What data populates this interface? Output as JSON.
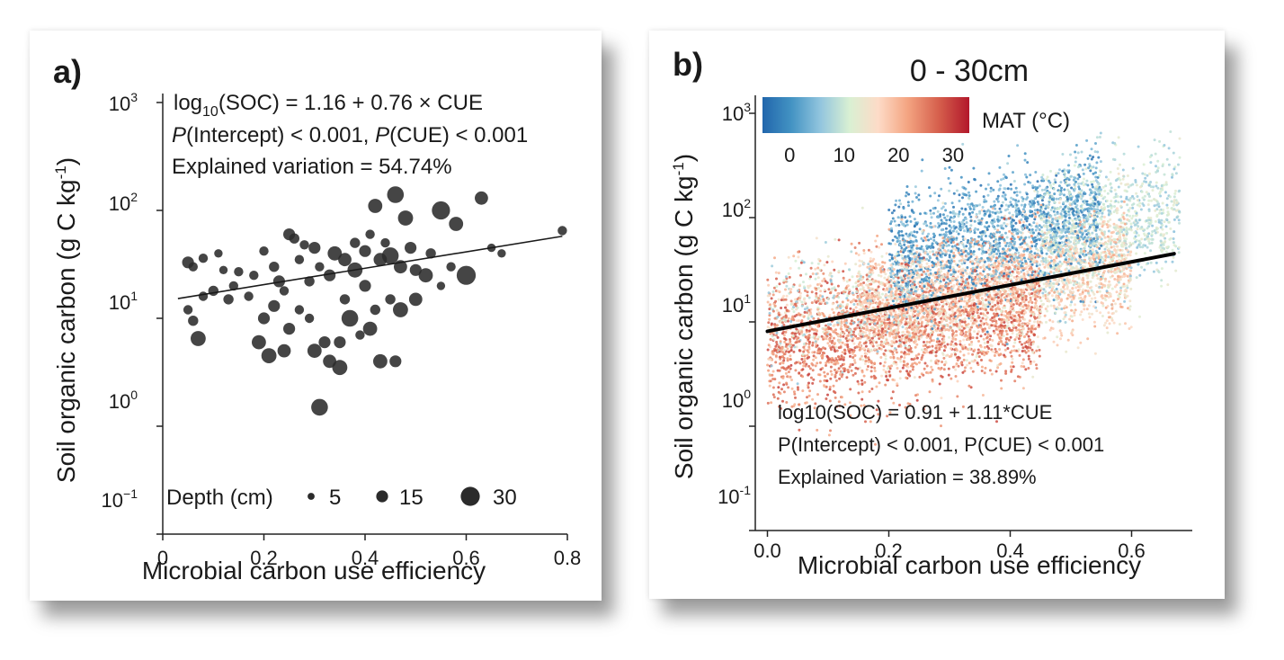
{
  "chart_data": [
    {
      "panel_label": "a)",
      "type": "scatter",
      "title": "",
      "xlabel": "Microbial carbon use efficiency",
      "ylabel_main": "Soil organic carbon (g C kg",
      "ylabel_sup": "-1",
      "ylabel_close": ")",
      "xlim": [
        0,
        0.8
      ],
      "ylim_log10": [
        -1,
        3
      ],
      "y_scale": "log10",
      "x_ticks": [
        "0",
        "0.2",
        "0.4",
        "0.6",
        "0.8"
      ],
      "x_tick_values": [
        0,
        0.2,
        0.4,
        0.6,
        0.8
      ],
      "y_ticks": [
        {
          "base": "10",
          "exp": "3"
        },
        {
          "base": "10",
          "exp": "2"
        },
        {
          "base": "10",
          "exp": "1"
        },
        {
          "base": "10",
          "exp": "0"
        },
        {
          "base": "10",
          "exp": "−1"
        }
      ],
      "y_tick_values_log10": [
        3,
        2,
        1,
        0,
        -1
      ],
      "annotations": {
        "eq_pre": "log",
        "eq_sub": "10",
        "eq_post": "(SOC) = 1.16 + 0.76 × CUE",
        "p_line_p1": "P",
        "p_line_t1": "(Intercept) < 0.001, ",
        "p_line_p2": "P",
        "p_line_t2": "(CUE) < 0.001",
        "variation": "Explained variation = 54.74%"
      },
      "regression": {
        "intercept": 1.16,
        "slope": 0.76,
        "x_range": [
          0.03,
          0.79
        ]
      },
      "legend": {
        "title": "Depth (cm)",
        "items": [
          {
            "label": "5",
            "depth": 5
          },
          {
            "label": "15",
            "depth": 15
          },
          {
            "label": "30",
            "depth": 30
          }
        ],
        "placement": "bottom"
      },
      "point_color": "#2b2b2b",
      "points": [
        {
          "x": 0.79,
          "y": 65,
          "d": 10
        },
        {
          "x": 0.46,
          "y": 140,
          "d": 25
        },
        {
          "x": 0.63,
          "y": 130,
          "d": 18
        },
        {
          "x": 0.42,
          "y": 110,
          "d": 20
        },
        {
          "x": 0.55,
          "y": 100,
          "d": 28
        },
        {
          "x": 0.48,
          "y": 85,
          "d": 22
        },
        {
          "x": 0.58,
          "y": 75,
          "d": 20
        },
        {
          "x": 0.25,
          "y": 60,
          "d": 15
        },
        {
          "x": 0.26,
          "y": 55,
          "d": 12
        },
        {
          "x": 0.28,
          "y": 48,
          "d": 10
        },
        {
          "x": 0.3,
          "y": 45,
          "d": 15
        },
        {
          "x": 0.2,
          "y": 42,
          "d": 10
        },
        {
          "x": 0.34,
          "y": 40,
          "d": 20
        },
        {
          "x": 0.38,
          "y": 50,
          "d": 12
        },
        {
          "x": 0.4,
          "y": 42,
          "d": 15
        },
        {
          "x": 0.43,
          "y": 35,
          "d": 18
        },
        {
          "x": 0.45,
          "y": 38,
          "d": 25
        },
        {
          "x": 0.47,
          "y": 30,
          "d": 18
        },
        {
          "x": 0.5,
          "y": 28,
          "d": 15
        },
        {
          "x": 0.52,
          "y": 25,
          "d": 20
        },
        {
          "x": 0.57,
          "y": 30,
          "d": 10
        },
        {
          "x": 0.6,
          "y": 25,
          "d": 30
        },
        {
          "x": 0.65,
          "y": 45,
          "d": 8
        },
        {
          "x": 0.67,
          "y": 40,
          "d": 8
        },
        {
          "x": 0.55,
          "y": 20,
          "d": 8
        },
        {
          "x": 0.05,
          "y": 33,
          "d": 15
        },
        {
          "x": 0.06,
          "y": 30,
          "d": 10
        },
        {
          "x": 0.08,
          "y": 36,
          "d": 10
        },
        {
          "x": 0.11,
          "y": 40,
          "d": 8
        },
        {
          "x": 0.12,
          "y": 28,
          "d": 8
        },
        {
          "x": 0.15,
          "y": 27,
          "d": 10
        },
        {
          "x": 0.18,
          "y": 25,
          "d": 10
        },
        {
          "x": 0.1,
          "y": 18,
          "d": 12
        },
        {
          "x": 0.08,
          "y": 16,
          "d": 10
        },
        {
          "x": 0.05,
          "y": 12,
          "d": 10
        },
        {
          "x": 0.06,
          "y": 9.5,
          "d": 12
        },
        {
          "x": 0.07,
          "y": 6.5,
          "d": 22
        },
        {
          "x": 0.13,
          "y": 15,
          "d": 12
        },
        {
          "x": 0.14,
          "y": 20,
          "d": 10
        },
        {
          "x": 0.17,
          "y": 16,
          "d": 10
        },
        {
          "x": 0.22,
          "y": 30,
          "d": 12
        },
        {
          "x": 0.23,
          "y": 22,
          "d": 15
        },
        {
          "x": 0.24,
          "y": 18,
          "d": 10
        },
        {
          "x": 0.22,
          "y": 13,
          "d": 15
        },
        {
          "x": 0.2,
          "y": 10,
          "d": 15
        },
        {
          "x": 0.25,
          "y": 8,
          "d": 15
        },
        {
          "x": 0.19,
          "y": 6,
          "d": 20
        },
        {
          "x": 0.21,
          "y": 4.5,
          "d": 22
        },
        {
          "x": 0.24,
          "y": 5,
          "d": 18
        },
        {
          "x": 0.27,
          "y": 12,
          "d": 10
        },
        {
          "x": 0.29,
          "y": 10,
          "d": 10
        },
        {
          "x": 0.3,
          "y": 5,
          "d": 20
        },
        {
          "x": 0.32,
          "y": 6,
          "d": 15
        },
        {
          "x": 0.33,
          "y": 4,
          "d": 18
        },
        {
          "x": 0.35,
          "y": 3.5,
          "d": 22
        },
        {
          "x": 0.35,
          "y": 6,
          "d": 15
        },
        {
          "x": 0.37,
          "y": 10,
          "d": 25
        },
        {
          "x": 0.31,
          "y": 1.5,
          "d": 25
        },
        {
          "x": 0.4,
          "y": 20,
          "d": 15
        },
        {
          "x": 0.42,
          "y": 12,
          "d": 12
        },
        {
          "x": 0.41,
          "y": 8,
          "d": 20
        },
        {
          "x": 0.43,
          "y": 4,
          "d": 20
        },
        {
          "x": 0.46,
          "y": 4,
          "d": 15
        },
        {
          "x": 0.47,
          "y": 12,
          "d": 22
        },
        {
          "x": 0.5,
          "y": 15,
          "d": 18
        },
        {
          "x": 0.45,
          "y": 15,
          "d": 12
        },
        {
          "x": 0.38,
          "y": 28,
          "d": 22
        },
        {
          "x": 0.36,
          "y": 35,
          "d": 18
        },
        {
          "x": 0.33,
          "y": 25,
          "d": 15
        },
        {
          "x": 0.31,
          "y": 30,
          "d": 10
        },
        {
          "x": 0.29,
          "y": 22,
          "d": 12
        },
        {
          "x": 0.27,
          "y": 35,
          "d": 10
        },
        {
          "x": 0.44,
          "y": 50,
          "d": 10
        },
        {
          "x": 0.49,
          "y": 45,
          "d": 15
        },
        {
          "x": 0.53,
          "y": 40,
          "d": 12
        },
        {
          "x": 0.41,
          "y": 60,
          "d": 10
        },
        {
          "x": 0.36,
          "y": 15,
          "d": 12
        },
        {
          "x": 0.39,
          "y": 7,
          "d": 10
        }
      ]
    },
    {
      "panel_label": "b)",
      "type": "scatter",
      "title": "0 - 30cm",
      "xlabel": "Microbial carbon use efficiency",
      "ylabel_main": "Soil organic carbon (g C kg",
      "ylabel_sup": "-1",
      "ylabel_close": ")",
      "xlim": [
        -0.02,
        0.7
      ],
      "ylim_log10": [
        -1,
        3
      ],
      "y_scale": "log10",
      "x_ticks": [
        "0.0",
        "0.2",
        "0.4",
        "0.6"
      ],
      "x_tick_values": [
        0,
        0.2,
        0.4,
        0.6
      ],
      "y_ticks": [
        {
          "base": "10",
          "exp": "3"
        },
        {
          "base": "10",
          "exp": "2"
        },
        {
          "base": "10",
          "exp": "1"
        },
        {
          "base": "10",
          "exp": "0"
        },
        {
          "base": "10",
          "exp": "-1"
        }
      ],
      "y_tick_values_log10": [
        3,
        2,
        1,
        0,
        -1
      ],
      "annotations": {
        "equation": "log10(SOC) = 0.91 + 1.11*CUE",
        "p_line": "P(Intercept) < 0.001, P(CUE) < 0.001",
        "variation": "Explained Variation = 38.89%"
      },
      "regression": {
        "intercept": 0.91,
        "slope": 1.11,
        "x_range": [
          0.0,
          0.67
        ]
      },
      "colorbar": {
        "title": "MAT (°C)",
        "range": [
          -5,
          33
        ],
        "ticks": [
          "0",
          "10",
          "20",
          "30"
        ],
        "tick_values": [
          0,
          10,
          20,
          30
        ],
        "colors": [
          "#2166ac",
          "#4393c3",
          "#92c5de",
          "#d9f0d3",
          "#fddbc7",
          "#f4a582",
          "#d6604d",
          "#b2182b"
        ],
        "placement": "top-left"
      },
      "point_cloud": {
        "description_free": true,
        "groups": [
          {
            "x_range": [
              0.0,
              0.45
            ],
            "log10_center_at_x0": 0.75,
            "log10_slope": 0.9,
            "spread": 0.32,
            "mat_range": [
              20,
              30
            ],
            "count": 2200
          },
          {
            "x_range": [
              0.15,
              0.6
            ],
            "log10_center_at_x0": 0.9,
            "log10_slope": 1.1,
            "spread": 0.28,
            "mat_range": [
              12,
              22
            ],
            "count": 2400
          },
          {
            "x_range": [
              0.2,
              0.55
            ],
            "log10_center_at_x0": 1.25,
            "log10_slope": 1.5,
            "spread": 0.3,
            "mat_range": [
              -4,
              8
            ],
            "count": 1800
          },
          {
            "x_range": [
              0.45,
              0.68
            ],
            "log10_center_at_x0": 1.3,
            "log10_slope": 1.1,
            "spread": 0.3,
            "mat_range": [
              5,
              14
            ],
            "count": 1000
          },
          {
            "x_range": [
              0.0,
              0.25
            ],
            "log10_center_at_x0": 1.1,
            "log10_slope": 0.5,
            "spread": 0.25,
            "mat_range": [
              5,
              20
            ],
            "count": 500
          }
        ]
      }
    }
  ]
}
